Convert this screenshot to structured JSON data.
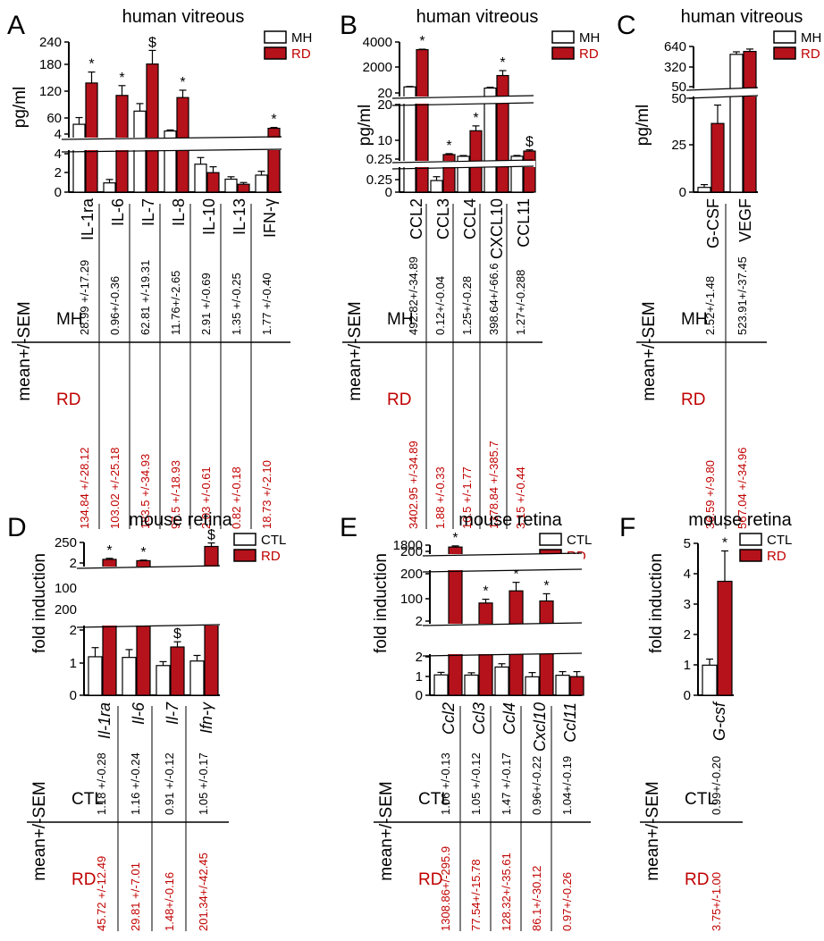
{
  "colors": {
    "ctrl": "#ffffff",
    "treat": "#b5121b",
    "axis": "#000000",
    "red_text": "#c00000"
  },
  "chart_data": [
    {
      "panel": "A",
      "title": "human vitreous",
      "type": "bar",
      "ylabel": "pg/ml",
      "legend": [
        "MH",
        "RD"
      ],
      "categories": [
        "IL-1ra",
        "IL-6",
        "IL-7",
        "IL-8",
        "IL-10",
        "IL-13",
        "IFN-γ"
      ],
      "axis_break": true,
      "yticks_lower": [
        "0",
        "2",
        "4"
      ],
      "ylim_lower": [
        0,
        4
      ],
      "yticks_upper": [
        "4",
        "60",
        "120",
        "180",
        "240"
      ],
      "ylim_upper": [
        4,
        240
      ],
      "series": [
        {
          "name": "MH",
          "values": [
            28.99,
            0.96,
            62.81,
            11.76,
            2.91,
            1.35,
            1.77
          ],
          "errors": [
            17.29,
            0.36,
            19.31,
            2.65,
            0.69,
            0.25,
            0.4
          ]
        },
        {
          "name": "RD",
          "values": [
            134.84,
            103.02,
            183.5,
            97.5,
            2.03,
            0.82,
            18.73
          ],
          "errors": [
            28.12,
            25.18,
            34.93,
            18.93,
            0.61,
            0.18,
            2.1
          ]
        }
      ],
      "significance": [
        "*",
        "*",
        "$",
        "*",
        "",
        "",
        "*"
      ],
      "table_ylabel": "mean+/-SEM",
      "table_rows": [
        "MH",
        "RD"
      ],
      "table": [
        [
          "28.99 +/-17.29",
          "0.96+/-0.36",
          "62.81 +/-19.31",
          "11.76+/-2.65",
          "2.91 +/-0.69",
          "1.35 +/-0.25",
          "1.77 +/-0.40"
        ],
        [
          "134.84 +/-28.12",
          "103.02 +/-25.18",
          "183.5 +/-34.93",
          "97.5 +/-18.93",
          "2.03 +/-0.61",
          "0.82 +/-0.18",
          "18.73 +/-2.10"
        ]
      ]
    },
    {
      "panel": "B",
      "title": "human vitreous",
      "type": "bar",
      "ylabel": "pg/ml",
      "legend": [
        "MH",
        "RD"
      ],
      "categories": [
        "CCL2",
        "CCL3",
        "CCL4",
        "CXCL10",
        "CCL11"
      ],
      "axis_break": true,
      "yticks_lower": [
        "0",
        "0.25"
      ],
      "ylim_lower": [
        0,
        0.25
      ],
      "yticks_mid": [
        "0.25",
        "10",
        "20"
      ],
      "ylim_mid": [
        0.25,
        20
      ],
      "yticks_upper": [
        "20",
        "2000",
        "4000"
      ],
      "ylim_upper": [
        20,
        4000
      ],
      "series": [
        {
          "name": "MH",
          "values": [
            492.82,
            0.12,
            1.25,
            398.64,
            1.27
          ],
          "errors": [
            34.89,
            0.04,
            0.28,
            66.6,
            0.288
          ]
        },
        {
          "name": "RD",
          "values": [
            3402.95,
            1.88,
            10.5,
            1378.84,
            3.15
          ],
          "errors": [
            34.89,
            0.33,
            1.77,
            385.7,
            0.44
          ]
        }
      ],
      "significance": [
        "*",
        "*",
        "*",
        "*",
        "$"
      ],
      "table_ylabel": "mean+/-SEM",
      "table_rows": [
        "MH",
        "RD"
      ],
      "table": [
        [
          "492.82+/-34.89",
          "0.12+/-0.04",
          "1.25+/-0.28",
          "398.64+/-66.6",
          "1.27+/-0.288"
        ],
        [
          "3402.95 +/-34.89",
          "1.88 +/-0.33",
          "10.5 +/-1.77",
          "1378.84 +/-385.7",
          "3.15 +/-0.44"
        ]
      ]
    },
    {
      "panel": "C",
      "title": "human vitreous",
      "type": "bar",
      "ylabel": "pg/ml",
      "legend": [
        "MH",
        "RD"
      ],
      "categories": [
        "G-CSF",
        "VEGF"
      ],
      "axis_break": true,
      "yticks_lower": [
        "0",
        "25",
        "50"
      ],
      "ylim_lower": [
        0,
        50
      ],
      "yticks_upper": [
        "50",
        "320",
        "640"
      ],
      "ylim_upper": [
        50,
        640
      ],
      "series": [
        {
          "name": "MH",
          "values": [
            2.52,
            523.91
          ],
          "errors": [
            1.48,
            37.45
          ]
        },
        {
          "name": "RD",
          "values": [
            36.59,
            567.04
          ],
          "errors": [
            9.8,
            34.96
          ]
        }
      ],
      "significance": [
        "*",
        ""
      ],
      "table_ylabel": "mean+/-SEM",
      "table_rows": [
        "MH",
        "RD"
      ],
      "table": [
        [
          "2.52+/-1.48",
          "523.91+/-37.45"
        ],
        [
          "36.59 +/-9.80",
          "567.04 +/-34.96"
        ]
      ]
    },
    {
      "panel": "D",
      "title": "mouse retina",
      "type": "bar",
      "ylabel": "fold induction",
      "legend": [
        "CTL",
        "RD"
      ],
      "categories": [
        "Il-1ra",
        "Il-6",
        "Il-7",
        "Ifn-γ"
      ],
      "axis_break": true,
      "yticks_lower": [
        "0",
        "1",
        "2"
      ],
      "ylim_lower": [
        0,
        2
      ],
      "yticks_upper": [
        "2",
        "100",
        "200",
        "250"
      ],
      "ylim_upper": [
        2,
        250
      ],
      "series": [
        {
          "name": "CTL",
          "values": [
            1.18,
            1.16,
            0.91,
            1.05
          ],
          "errors": [
            0.28,
            0.24,
            0.12,
            0.17
          ]
        },
        {
          "name": "RD",
          "values": [
            45.72,
            29.81,
            1.48,
            201.34
          ],
          "errors": [
            12.49,
            7.01,
            0.16,
            42.45
          ]
        }
      ],
      "significance": [
        "*",
        "*",
        "$",
        "$"
      ],
      "table_ylabel": "mean+/-SEM",
      "table_rows": [
        "CTL",
        "RD"
      ],
      "table": [
        [
          "1.18 +/-0.28",
          "1.16 +/-0.24",
          "0.91 +/-0.12",
          "1.05 +/-0.17"
        ],
        [
          "45.72 +/-12.49",
          "29.81 +/-7.01",
          "1.48+/-0.16",
          "201.34+/-42.45"
        ]
      ]
    },
    {
      "panel": "E",
      "title": "mouse retina",
      "type": "bar",
      "ylabel": "fold induction",
      "legend": [
        "CTL",
        "RD"
      ],
      "categories": [
        "Ccl2",
        "Ccl3",
        "Ccl4",
        "Cxcl10",
        "Ccl11"
      ],
      "axis_break": true,
      "yticks_lower": [
        "0",
        "1",
        "2"
      ],
      "ylim_lower": [
        0,
        2
      ],
      "yticks_mid": [
        "2",
        "100",
        "200"
      ],
      "ylim_mid": [
        2,
        200
      ],
      "yticks_upper": [
        "200",
        "1800"
      ],
      "ylim_upper": [
        200,
        1800
      ],
      "series": [
        {
          "name": "CTL",
          "values": [
            1.06,
            1.05,
            1.47,
            0.96,
            1.04
          ],
          "errors": [
            0.13,
            0.12,
            0.17,
            0.22,
            0.19
          ]
        },
        {
          "name": "RD",
          "values": [
            1308.86,
            77.54,
            128.32,
            86.1,
            0.97
          ],
          "errors": [
            295.9,
            15.78,
            35.61,
            30.12,
            0.26
          ]
        }
      ],
      "significance": [
        "*",
        "*",
        "*",
        "*",
        ""
      ],
      "table_ylabel": "mean+/-SEM",
      "table_rows": [
        "CTL",
        "RD"
      ],
      "table": [
        [
          "1.06 +/-0.13",
          "1.05 +/-0.12",
          "1.47 +/-0.17",
          "0.96+/-0.22",
          "1.04+/-0.19"
        ],
        [
          "1308.86+/-295.9",
          "77.54+/-15.78",
          "128.32+/-35.61",
          "86.1+/-30.12",
          "0.97+/-0.26"
        ]
      ]
    },
    {
      "panel": "F",
      "title": "mouse retina",
      "type": "bar",
      "ylabel": "fold induction",
      "legend": [
        "CTL",
        "RD"
      ],
      "categories": [
        "G-csf"
      ],
      "axis_break": false,
      "yticks": [
        "0",
        "1",
        "2",
        "3",
        "4",
        "5"
      ],
      "ylim": [
        0,
        5
      ],
      "series": [
        {
          "name": "CTL",
          "values": [
            0.99
          ],
          "errors": [
            0.2
          ]
        },
        {
          "name": "RD",
          "values": [
            3.75
          ],
          "errors": [
            1.0
          ]
        }
      ],
      "significance": [
        "*"
      ],
      "table_ylabel": "mean+/-SEM",
      "table_rows": [
        "CTL",
        "RD"
      ],
      "table": [
        [
          "0.99+/-0.20"
        ],
        [
          "3.75+/-1.00"
        ]
      ]
    }
  ]
}
